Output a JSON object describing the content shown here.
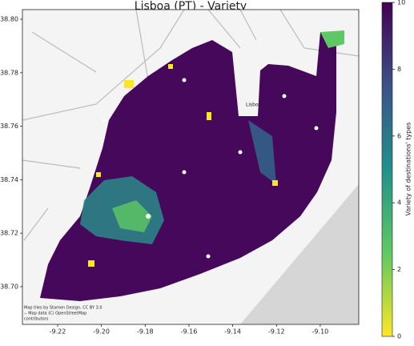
{
  "chart_data": {
    "type": "hexbin-map",
    "title": "Lisboa (PT) -  Variety",
    "xlim": [
      -9.2361,
      -9.0824
    ],
    "ylim": [
      38.6859,
      38.8036
    ],
    "xticks": [
      -9.22,
      {
        "value": -9.2,
        "label": "-9.20"
      },
      -9.18,
      -9.16,
      -9.14,
      -9.12,
      {
        "value": -9.1,
        "label": "-9.10"
      }
    ],
    "yticks": [
      {
        "value": 38.7,
        "label": "38.70"
      },
      38.72,
      38.74,
      38.76,
      38.78,
      {
        "value": 38.8,
        "label": "38.80"
      }
    ],
    "colorbar": {
      "label": "Variety of destinations' types",
      "lim": [
        0,
        10
      ],
      "ticks": [
        0,
        2,
        4,
        6,
        8,
        10
      ]
    },
    "place_label": "Lisboa",
    "attribution": [
      "Map tiles by Stamen Design, CC BY 3.0",
      "-- Map data (C) OpenStreetMap",
      "contributors"
    ]
  }
}
